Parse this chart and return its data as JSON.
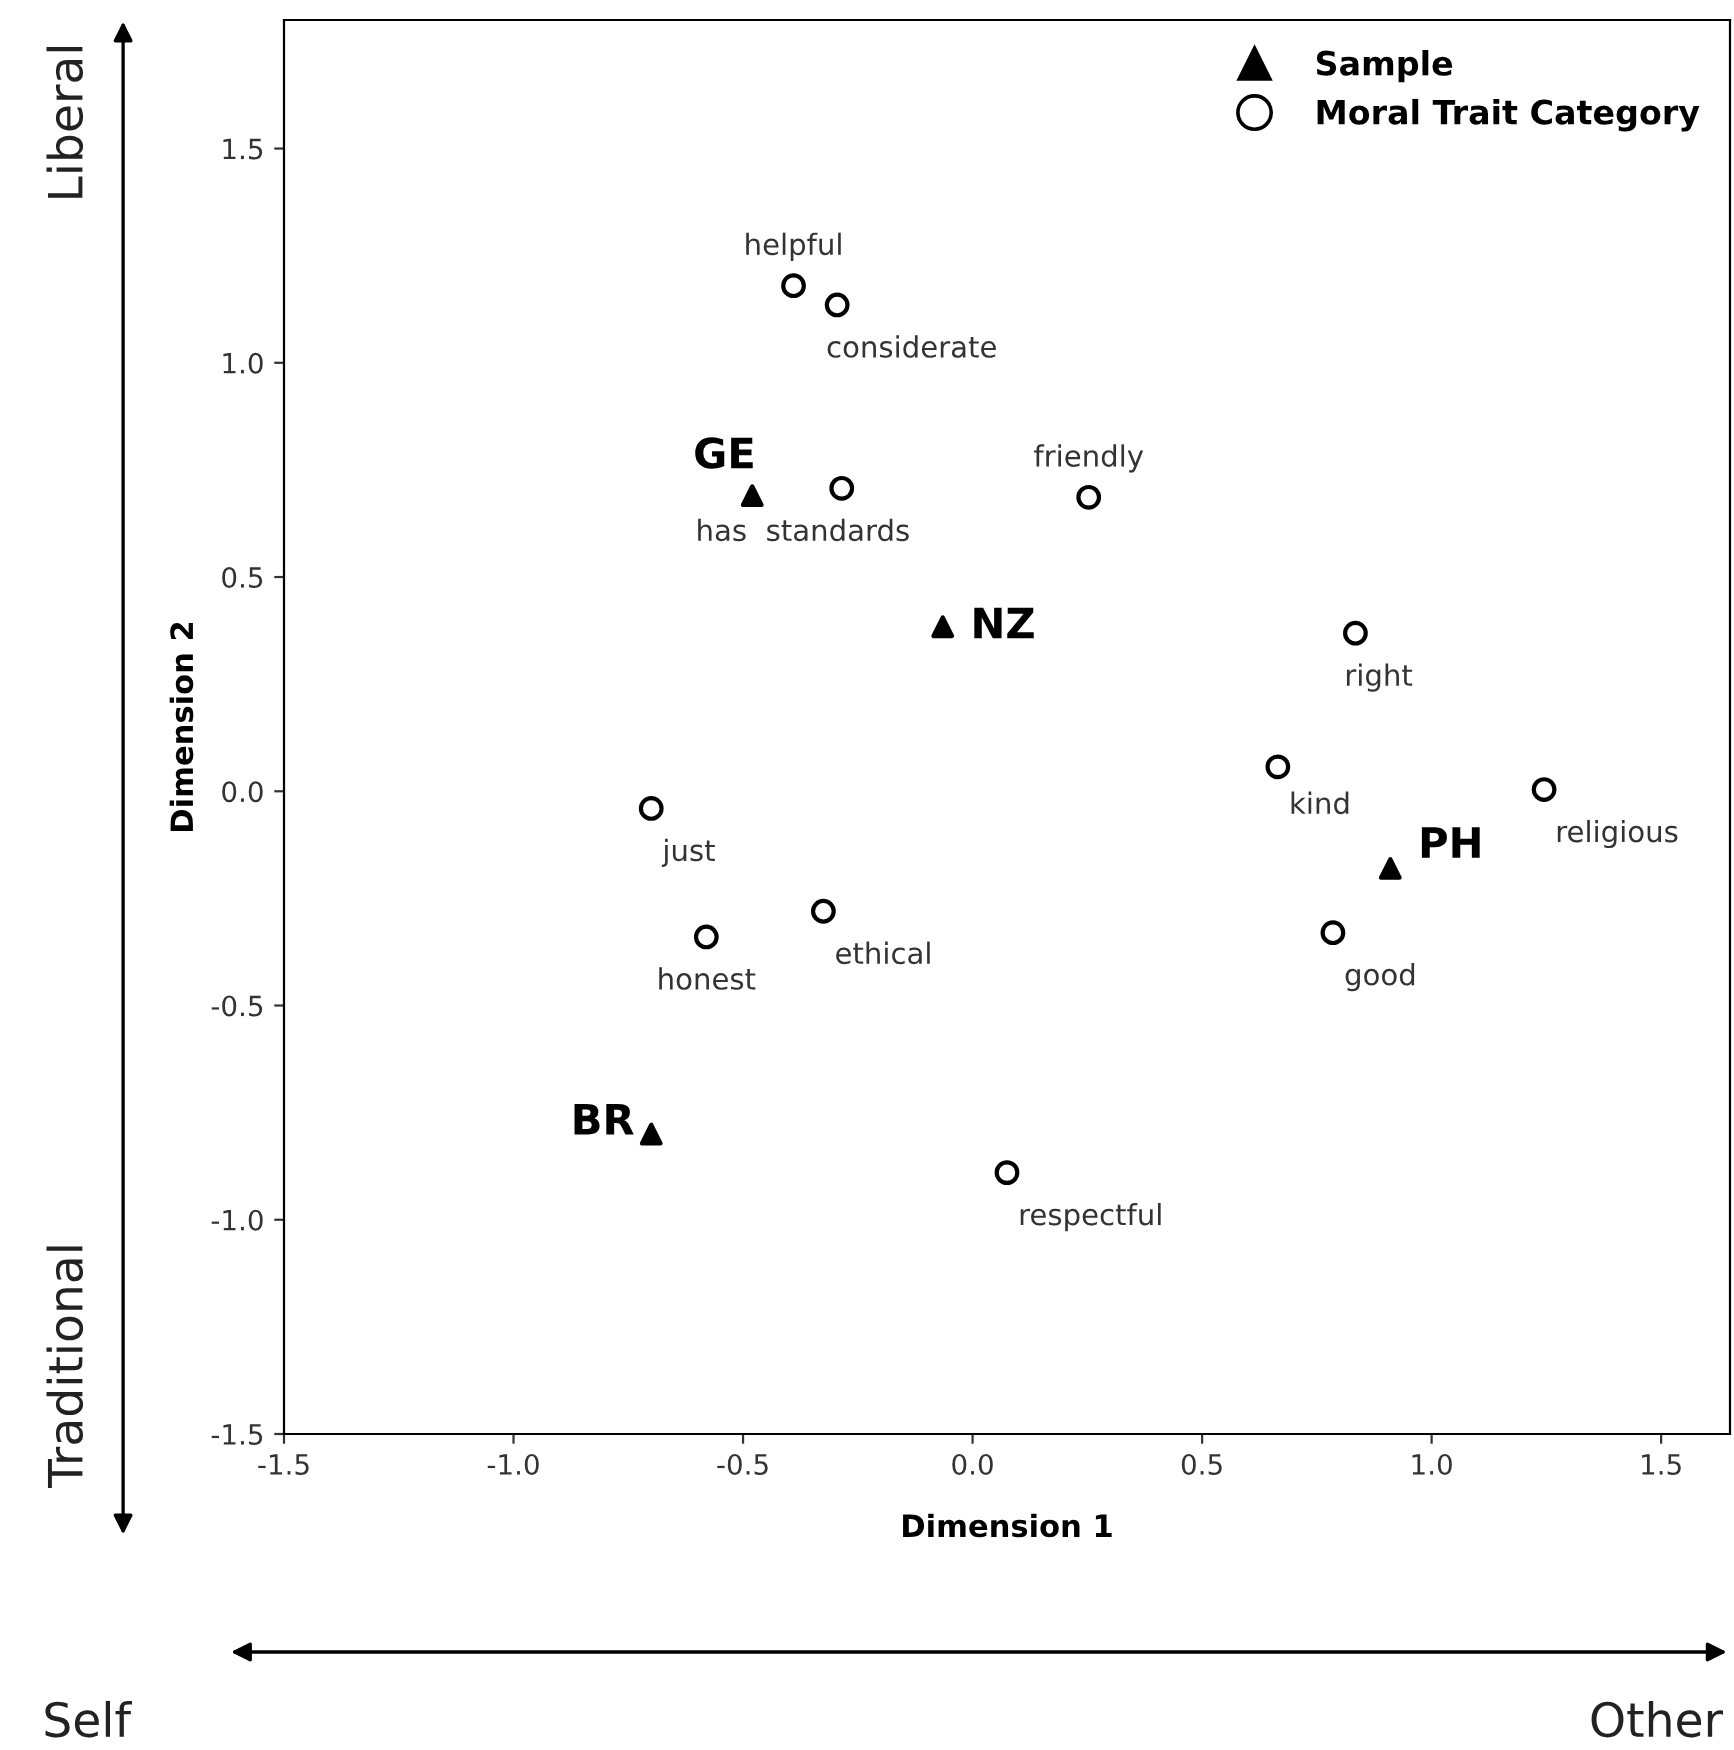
{
  "chart_data": {
    "type": "scatter",
    "xlabel": "Dimension 1",
    "ylabel": "Dimension 2",
    "xlim": [
      -1.5,
      1.65
    ],
    "ylim": [
      -1.5,
      1.8
    ],
    "xticks": [
      {
        "value": -1.5,
        "label": "-1.5"
      },
      {
        "value": -1.0,
        "label": "-1.0"
      },
      {
        "value": -0.5,
        "label": "-0.5"
      },
      {
        "value": 0,
        "label": "0.0"
      },
      {
        "value": 0.5,
        "label": "0.5"
      },
      {
        "value": 1.0,
        "label": "1.0"
      },
      {
        "value": 1.5,
        "label": "1.5"
      }
    ],
    "yticks": [
      {
        "value": -1.5,
        "label": "-1.5"
      },
      {
        "value": -1.0,
        "label": "-1.0"
      },
      {
        "value": -0.5,
        "label": "-0.5"
      },
      {
        "value": 0,
        "label": "0.0"
      },
      {
        "value": 0.5,
        "label": "0.5"
      },
      {
        "value": 1.0,
        "label": "1.0"
      },
      {
        "value": 1.5,
        "label": "1.5"
      }
    ],
    "grid": false,
    "legend": "top right",
    "series": [
      {
        "name": "Sample",
        "color": "#000000",
        "marker": "triangle",
        "x": [
          -0.48,
          -0.065,
          0.91,
          -0.7
        ],
        "values": [
          0.69,
          0.384,
          -0.18,
          -0.8
        ]
      },
      {
        "name": "Moral Trait Category",
        "color": "#000000",
        "marker": "circle",
        "x": [
          -0.39,
          -0.295,
          -0.285,
          0.253,
          0.834,
          0.665,
          1.245,
          -0.7,
          -0.58,
          -0.325,
          0.785,
          0.075
        ],
        "values": [
          1.18,
          1.135,
          0.707,
          0.686,
          0.369,
          0.057,
          0.004,
          -0.04,
          -0.34,
          -0.28,
          -0.33,
          -0.89
        ]
      }
    ],
    "annotations": [
      {
        "text": "GE",
        "x": -0.48,
        "y": 0.69
      },
      {
        "text": "NZ",
        "x": -0.065,
        "y": 0.384
      },
      {
        "text": "PH",
        "x": 0.91,
        "y": -0.18
      },
      {
        "text": "BR",
        "x": -0.7,
        "y": -0.8
      },
      {
        "text": "helpful",
        "x": -0.39,
        "y": 1.18
      },
      {
        "text": "considerate",
        "x": -0.295,
        "y": 1.135
      },
      {
        "text": "has  standards",
        "x": -0.285,
        "y": 0.707
      },
      {
        "text": "friendly",
        "x": 0.253,
        "y": 0.686
      },
      {
        "text": "right",
        "x": 0.834,
        "y": 0.369
      },
      {
        "text": "kind",
        "x": 0.665,
        "y": 0.057
      },
      {
        "text": "religious",
        "x": 1.245,
        "y": 0.004
      },
      {
        "text": "just",
        "x": -0.7,
        "y": -0.04
      },
      {
        "text": "honest",
        "x": -0.58,
        "y": -0.34
      },
      {
        "text": "ethical",
        "x": -0.325,
        "y": -0.28
      },
      {
        "text": "good",
        "x": 0.785,
        "y": -0.33
      },
      {
        "text": "respectful",
        "x": 0.075,
        "y": -0.89
      },
      "Liberal",
      "Traditional",
      "Self",
      "Other"
    ]
  }
}
